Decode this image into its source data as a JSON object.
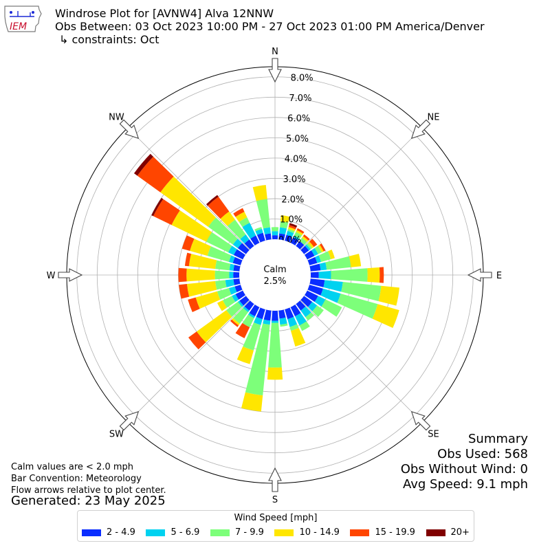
{
  "header": {
    "line1": "Windrose Plot for [AVNW4] Alva 12NNW",
    "line2": "Obs Between: 03 Oct 2023 10:00 PM - 27 Oct 2023 01:00 PM America/Denver",
    "line3": "↳ constraints: Oct"
  },
  "logo": {
    "text": "IEM",
    "icon": "iowa-state-outline-icon"
  },
  "notes": {
    "line1": "Calm values are < 2.0 mph",
    "line2": "Bar Convention: Meteorology",
    "line3": "Flow arrows relative to plot center.",
    "generated": "Generated: 23 May 2025"
  },
  "summary": {
    "title": "Summary",
    "obs_used": "Obs Used: 568",
    "obs_without_wind": "Obs Without Wind: 0",
    "avg_speed": "Avg Speed: 9.1 mph"
  },
  "chart_data": {
    "type": "windrose",
    "title": "Windrose Plot for [AVNW4] Alva 12NNW",
    "subtitle": "Obs Between: 03 Oct 2023 10:00 PM - 27 Oct 2023 01:00 PM America/Denver",
    "calm": {
      "label": "Calm",
      "value": "2.5%",
      "percent": 2.5
    },
    "radial_axis": {
      "ticks": [
        0,
        1,
        2,
        3,
        4,
        5,
        6,
        7,
        8
      ],
      "tick_labels": [
        "0.0%",
        "1.0%",
        "2.0%",
        "3.0%",
        "4.0%",
        "5.0%",
        "6.0%",
        "7.0%",
        "8.0%"
      ],
      "unit": "percent",
      "max": 8.5
    },
    "directions": [
      {
        "label": "N",
        "angle": 0
      },
      {
        "label": "NE",
        "angle": 45
      },
      {
        "label": "E",
        "angle": 90
      },
      {
        "label": "SE",
        "angle": 135
      },
      {
        "label": "S",
        "angle": 180
      },
      {
        "label": "SW",
        "angle": 225
      },
      {
        "label": "W",
        "angle": 270
      },
      {
        "label": "NW",
        "angle": 315
      }
    ],
    "legend": {
      "title": "Wind Speed [mph]",
      "placement": "bottom-center",
      "bins": [
        {
          "label": "2 - 4.9",
          "color": "#0a2dff"
        },
        {
          "label": "5 - 6.9",
          "color": "#00d2f0"
        },
        {
          "label": "7 - 9.9",
          "color": "#7dff7a"
        },
        {
          "label": "10 - 14.9",
          "color": "#ffe600"
        },
        {
          "label": "15 - 19.9",
          "color": "#ff4500"
        },
        {
          "label": "20+",
          "color": "#800000"
        }
      ]
    },
    "sector_angles": [
      0,
      10,
      20,
      30,
      40,
      50,
      60,
      70,
      80,
      90,
      100,
      110,
      120,
      130,
      140,
      150,
      160,
      170,
      180,
      190,
      200,
      210,
      220,
      230,
      240,
      250,
      260,
      270,
      280,
      290,
      300,
      310,
      320,
      330,
      340,
      350
    ],
    "cumulative_percent": [
      [
        0.2,
        0.4,
        0.6,
        0.6,
        0.6,
        0.6
      ],
      [
        0.3,
        0.6,
        0.9,
        1.2,
        1.2,
        1.2
      ],
      [
        0.3,
        0.5,
        0.6,
        0.7,
        0.8,
        0.9
      ],
      [
        0.3,
        0.4,
        0.6,
        0.7,
        0.8,
        0.8
      ],
      [
        0.3,
        0.3,
        0.5,
        0.6,
        0.7,
        0.7
      ],
      [
        0.3,
        0.4,
        0.5,
        0.6,
        0.8,
        0.8
      ],
      [
        0.4,
        0.6,
        0.8,
        0.9,
        1.0,
        1.0
      ],
      [
        0.4,
        0.6,
        1.1,
        1.3,
        1.3,
        1.3
      ],
      [
        0.5,
        0.8,
        2.0,
        2.5,
        2.5,
        2.5
      ],
      [
        0.4,
        1.0,
        2.8,
        3.4,
        3.6,
        3.6
      ],
      [
        0.7,
        1.6,
        3.5,
        4.4,
        4.4,
        4.4
      ],
      [
        0.7,
        1.6,
        3.5,
        4.6,
        4.6,
        4.6
      ],
      [
        0.6,
        1.0,
        1.9,
        1.9,
        1.9,
        1.9
      ],
      [
        0.5,
        0.8,
        1.2,
        1.2,
        1.2,
        1.2
      ],
      [
        0.4,
        0.8,
        1.0,
        1.0,
        1.0,
        1.0
      ],
      [
        0.5,
        1.0,
        1.3,
        1.3,
        1.3,
        1.3
      ],
      [
        0.5,
        0.9,
        1.1,
        1.9,
        1.9,
        1.9
      ],
      [
        0.4,
        0.7,
        0.8,
        0.8,
        0.8,
        0.8
      ],
      [
        0.5,
        0.6,
        2.8,
        3.4,
        3.4,
        3.4
      ],
      [
        0.5,
        0.7,
        4.2,
        5.0,
        5.0,
        5.0
      ],
      [
        0.5,
        0.8,
        2.1,
        2.8,
        2.8,
        2.8
      ],
      [
        0.5,
        0.6,
        1.1,
        1.1,
        1.7,
        1.7
      ],
      [
        0.4,
        0.5,
        1.2,
        1.3,
        1.4,
        1.4
      ],
      [
        0.4,
        0.5,
        1.2,
        3.0,
        3.5,
        3.5
      ],
      [
        0.4,
        0.6,
        1.1,
        1.4,
        1.4,
        1.4
      ],
      [
        0.3,
        0.6,
        1.2,
        2.3,
        2.7,
        2.7
      ],
      [
        0.3,
        0.7,
        1.2,
        2.6,
        3.0,
        3.0
      ],
      [
        0.3,
        0.5,
        1.2,
        2.6,
        3.0,
        3.0
      ],
      [
        0.3,
        0.5,
        1.2,
        2.5,
        2.7,
        2.7
      ],
      [
        0.4,
        0.6,
        1.7,
        2.6,
        3.0,
        3.0
      ],
      [
        0.5,
        0.8,
        2.0,
        3.9,
        4.9,
        5.0
      ],
      [
        0.5,
        0.8,
        2.3,
        5.2,
        6.6,
        6.8
      ],
      [
        0.4,
        0.7,
        1.6,
        2.1,
        3.0,
        3.1
      ],
      [
        0.4,
        1.1,
        1.4,
        1.7,
        1.9,
        1.9
      ],
      [
        0.4,
        0.6,
        0.7,
        0.7,
        0.7,
        0.7
      ],
      [
        0.3,
        0.6,
        2.0,
        2.7,
        2.7,
        2.7
      ]
    ]
  }
}
